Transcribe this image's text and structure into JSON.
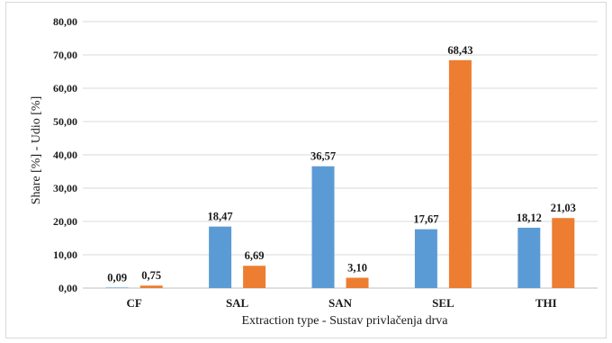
{
  "chart_data": {
    "type": "bar",
    "title": "",
    "xlabel": "Extraction type - Sustav privlačenja drva",
    "ylabel": "Share [%] - Udio [%]",
    "ylim": [
      0,
      80
    ],
    "yticks": [
      "0,00",
      "10,00",
      "20,00",
      "30,00",
      "40,00",
      "50,00",
      "60,00",
      "70,00",
      "80,00"
    ],
    "categories": [
      "CF",
      "SAL",
      "SAN",
      "SEL",
      "THI"
    ],
    "grid": true,
    "series": [
      {
        "values": [
          0.09,
          18.47,
          36.57,
          17.67,
          18.12
        ],
        "labels": [
          "0,09",
          "18,47",
          "36,57",
          "17,67",
          "18,12"
        ],
        "color": "#5b9bd5"
      },
      {
        "values": [
          0.75,
          6.69,
          3.1,
          68.43,
          21.03
        ],
        "labels": [
          "0,75",
          "6,69",
          "3,10",
          "68,43",
          "21,03"
        ],
        "color": "#ed7d31"
      }
    ]
  }
}
